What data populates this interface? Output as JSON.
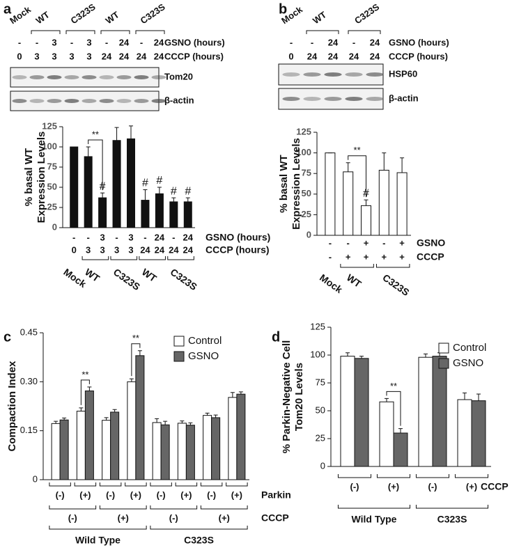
{
  "panels": [
    "a",
    "b",
    "c",
    "d"
  ],
  "blots": [
    {
      "header": [
        "Mock",
        "WT",
        "C323S",
        "WT",
        "C323S"
      ],
      "rows": [
        {
          "label": "GSNO (hours)",
          "cells": [
            "-",
            "-",
            "3",
            "-",
            "3",
            "-",
            "24",
            "-",
            "24"
          ]
        },
        {
          "label": "CCCP (hours)",
          "cells": [
            "0",
            "3",
            "3",
            "3",
            "3",
            "24",
            "24",
            "24",
            "24"
          ]
        }
      ],
      "bands": [
        "Tom20",
        "β-actin"
      ]
    },
    {
      "header": [
        "Mock",
        "WT",
        "C323S"
      ],
      "rows": [
        {
          "label": "GSNO (hours)",
          "cells": [
            "-",
            "-",
            "24",
            "-",
            "24"
          ]
        },
        {
          "label": "CCCP (hours)",
          "cells": [
            "0",
            "24",
            "24",
            "24",
            "24"
          ]
        }
      ],
      "bands": [
        "HSP60",
        "β-actin"
      ]
    }
  ],
  "chart_data": [
    {
      "type": "bar",
      "ylabel": [
        "% basal WT",
        "Expression Levels"
      ],
      "values": [
        100,
        88,
        37,
        108,
        110,
        34,
        42,
        32,
        32
      ],
      "errors": [
        0,
        12,
        6,
        16,
        16,
        13,
        8,
        5,
        5
      ],
      "color": "#111111",
      "ylim": [
        0,
        125
      ],
      "yticks": [
        0,
        25,
        50,
        75,
        100,
        125
      ],
      "rows": [
        {
          "label": "GSNO (hours)",
          "cells": [
            "-",
            "-",
            "3",
            "-",
            "3",
            "-",
            "24",
            "-",
            "24"
          ]
        },
        {
          "label": "CCCP (hours)",
          "cells": [
            "0",
            "3",
            "3",
            "3",
            "3",
            "24",
            "24",
            "24",
            "24"
          ]
        }
      ],
      "groups": [
        "Mock",
        "WT",
        "C323S",
        "WT",
        "C323S"
      ],
      "annotations": [
        {
          "text": "**"
        },
        {
          "text": "#"
        },
        {
          "text": "#"
        },
        {
          "text": "#"
        },
        {
          "text": "#"
        },
        {
          "text": "#"
        }
      ]
    },
    {
      "type": "bar",
      "ylabel": [
        "% basal WT",
        "Expression Levels"
      ],
      "values": [
        100,
        77,
        36,
        79,
        76
      ],
      "errors": [
        0,
        11,
        7,
        21,
        18
      ],
      "color": "#ffffff",
      "ylim": [
        0,
        125
      ],
      "yticks": [
        0,
        25,
        50,
        75,
        100,
        125
      ],
      "rows": [
        {
          "label": "GSNO",
          "cells": [
            "-",
            "-",
            "+",
            "-",
            "+"
          ]
        },
        {
          "label": "CCCP",
          "cells": [
            "-",
            "+",
            "+",
            "+",
            "+"
          ]
        }
      ],
      "groups": [
        "Mock",
        "WT",
        "C323S"
      ],
      "annotations": [
        {
          "text": "**"
        },
        {
          "text": "#"
        }
      ]
    },
    {
      "type": "grouped-bar",
      "ylabel": [
        "Compaction Index"
      ],
      "series": [
        {
          "name": "Control",
          "color": "#ffffff",
          "values": [
            0.172,
            0.21,
            0.182,
            0.3,
            0.175,
            0.173,
            0.197,
            0.252
          ],
          "errors": [
            0.007,
            0.01,
            0.008,
            0.009,
            0.012,
            0.007,
            0.007,
            0.015
          ]
        },
        {
          "name": "GSNO",
          "color": "#666666",
          "values": [
            0.183,
            0.272,
            0.207,
            0.38,
            0.168,
            0.167,
            0.19,
            0.262
          ],
          "errors": [
            0.006,
            0.012,
            0.008,
            0.015,
            0.011,
            0.007,
            0.008,
            0.007
          ]
        }
      ],
      "ylim": [
        0,
        0.45
      ],
      "yticks": [
        0,
        0.15,
        {
          "value": 0.3,
          "label": "0.30"
        },
        0.45
      ],
      "rows": [
        {
          "label": "Parkin",
          "cells": [
            "(-)",
            "(+)",
            "(-)",
            "(+)",
            "(-)",
            "(+)",
            "(-)",
            "(+)"
          ]
        },
        {
          "label": "CCCP",
          "cells": [
            "(-)",
            "(+)",
            "(-)",
            "(+)"
          ]
        }
      ],
      "groups": [
        "Wild Type",
        "C323S"
      ],
      "annotations": [
        {
          "text": "**"
        },
        {
          "text": "**"
        }
      ]
    },
    {
      "type": "grouped-bar",
      "ylabel": [
        "% Parkin-Negative Cell",
        "Tom20 Levels"
      ],
      "series": [
        {
          "name": "Control",
          "color": "#ffffff",
          "values": [
            99,
            58,
            98,
            60
          ],
          "errors": [
            3,
            3,
            3,
            6
          ]
        },
        {
          "name": "GSNO",
          "color": "#666666",
          "values": [
            97,
            30,
            99,
            59
          ],
          "errors": [
            2,
            4,
            3,
            6
          ]
        }
      ],
      "ylim": [
        0,
        125
      ],
      "yticks": [
        0,
        25,
        50,
        75,
        100,
        125
      ],
      "rows": [
        {
          "label": "CCCP",
          "cells": [
            "(-)",
            "(+)",
            "(-)",
            "(+)"
          ]
        }
      ],
      "groups": [
        "Wild Type",
        "C323S"
      ],
      "annotations": [
        {
          "text": "**"
        }
      ]
    }
  ]
}
